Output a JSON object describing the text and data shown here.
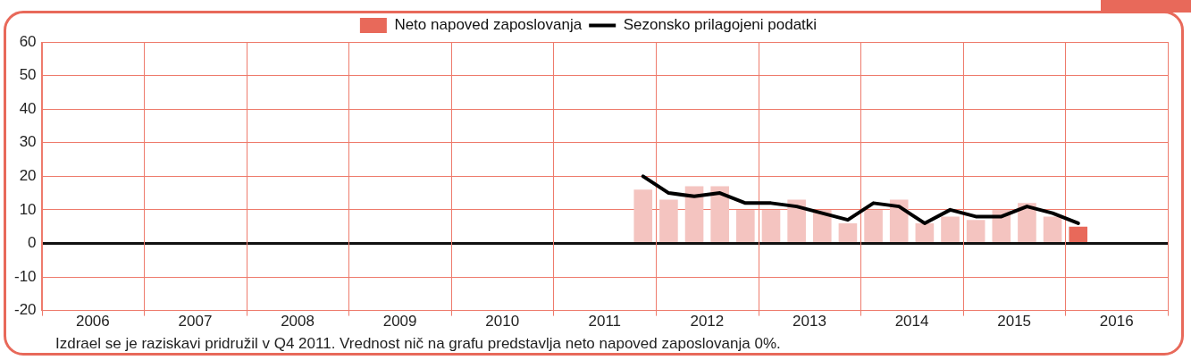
{
  "chart_data": {
    "type": "bar",
    "x": [
      2011.875,
      2012.125,
      2012.375,
      2012.625,
      2012.875,
      2013.125,
      2013.375,
      2013.625,
      2013.875,
      2014.125,
      2014.375,
      2014.625,
      2014.875,
      2015.125,
      2015.375,
      2015.625,
      2015.875,
      2016.125
    ],
    "series": [
      {
        "name": "Neto napoved zaposlovanja",
        "color": "#e8695a",
        "colors": [
          "#f4c4c0",
          "#f4c4c0",
          "#f4c4c0",
          "#f4c4c0",
          "#f4c4c0",
          "#f4c4c0",
          "#f4c4c0",
          "#f4c4c0",
          "#f4c4c0",
          "#f4c4c0",
          "#f4c4c0",
          "#f4c4c0",
          "#f4c4c0",
          "#f4c4c0",
          "#f4c4c0",
          "#f4c4c0",
          "#f4c4c0",
          "#e8695a"
        ],
        "values": [
          16,
          13,
          17,
          17,
          10,
          10,
          13,
          10,
          6,
          10,
          13,
          6,
          8,
          7,
          10,
          12,
          8,
          5
        ]
      },
      {
        "name": "Sezonsko prilagojeni podatki",
        "type": "line",
        "color": "#000000",
        "values": [
          20,
          15,
          14,
          15,
          12,
          12,
          11,
          9,
          7,
          12,
          11,
          6,
          10,
          8,
          8,
          11,
          9,
          6
        ]
      }
    ],
    "xlim": [
      2006,
      2017
    ],
    "xticks": [
      {
        "value": 2006,
        "label": null
      },
      {
        "value": 2006.5,
        "label": "2006"
      },
      {
        "value": 2007,
        "label": null
      },
      {
        "value": 2007.5,
        "label": "2007"
      },
      {
        "value": 2008,
        "label": null
      },
      {
        "value": 2008.5,
        "label": "2008"
      },
      {
        "value": 2009,
        "label": null
      },
      {
        "value": 2009.5,
        "label": "2009"
      },
      {
        "value": 2010,
        "label": null
      },
      {
        "value": 2010.5,
        "label": "2010"
      },
      {
        "value": 2011,
        "label": null
      },
      {
        "value": 2011.5,
        "label": "2011"
      },
      {
        "value": 2012,
        "label": null
      },
      {
        "value": 2012.5,
        "label": "2012"
      },
      {
        "value": 2013,
        "label": null
      },
      {
        "value": 2013.5,
        "label": "2013"
      },
      {
        "value": 2014,
        "label": null
      },
      {
        "value": 2014.5,
        "label": "2014"
      },
      {
        "value": 2015,
        "label": null
      },
      {
        "value": 2015.5,
        "label": "2015"
      },
      {
        "value": 2016,
        "label": null
      },
      {
        "value": 2016.5,
        "label": "2016"
      },
      {
        "value": 2017,
        "label": null
      }
    ],
    "ylim": [
      -20,
      60
    ],
    "yticks": [
      -20,
      -10,
      0,
      10,
      20,
      30,
      40,
      50,
      60
    ],
    "grid": true,
    "legend": "top",
    "marker": "none",
    "line_style": "solid",
    "annotations": [
      "Izdrael se je raziskavi pridružil v Q4 2011. Vrednost nič na grafu predstavlja neto napoved zaposlovanja 0%."
    ]
  }
}
